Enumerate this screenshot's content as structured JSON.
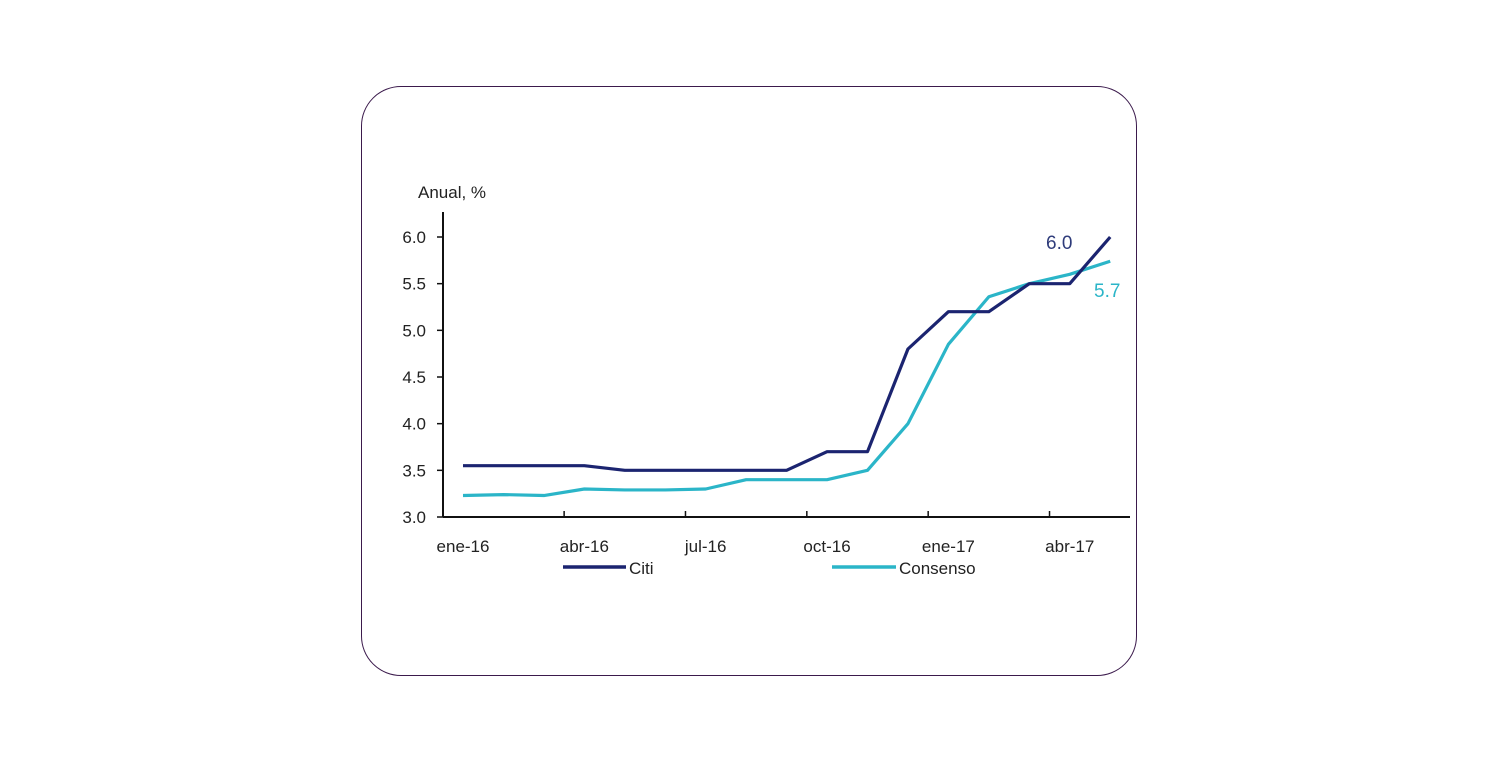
{
  "chart_data": {
    "type": "line",
    "ylabel": "Anual, %",
    "ylim": [
      3.0,
      6.0
    ],
    "yticks": [
      "3.0",
      "3.5",
      "4.0",
      "4.5",
      "5.0",
      "5.5",
      "6.0"
    ],
    "categories": [
      "ene-16",
      "feb-16",
      "mar-16",
      "abr-16",
      "may-16",
      "jun-16",
      "jul-16",
      "ago-16",
      "sep-16",
      "oct-16",
      "nov-16",
      "dic-16",
      "ene-17",
      "feb-17",
      "mar-17",
      "abr-17",
      "may-17"
    ],
    "xtick_labels": [
      "ene-16",
      "abr-16",
      "jul-16",
      "oct-16",
      "ene-17",
      "abr-17"
    ],
    "series": [
      {
        "name": "Citi",
        "color": "#1b2470",
        "values": [
          3.55,
          3.55,
          3.55,
          3.55,
          3.5,
          3.5,
          3.5,
          3.5,
          3.5,
          3.7,
          3.7,
          4.8,
          5.2,
          5.2,
          5.5,
          5.5,
          6.0
        ]
      },
      {
        "name": "Consenso",
        "color": "#2bb5c8",
        "values": [
          3.23,
          3.24,
          3.23,
          3.3,
          3.29,
          3.29,
          3.3,
          3.4,
          3.4,
          3.4,
          3.5,
          4.0,
          4.85,
          5.36,
          5.5,
          5.6,
          5.74
        ]
      }
    ],
    "annotations": [
      {
        "text": "6.0",
        "color": "#2e3b7a"
      },
      {
        "text": "5.7",
        "color": "#2bb5c8"
      }
    ],
    "legend": "bottom",
    "grid": false
  }
}
